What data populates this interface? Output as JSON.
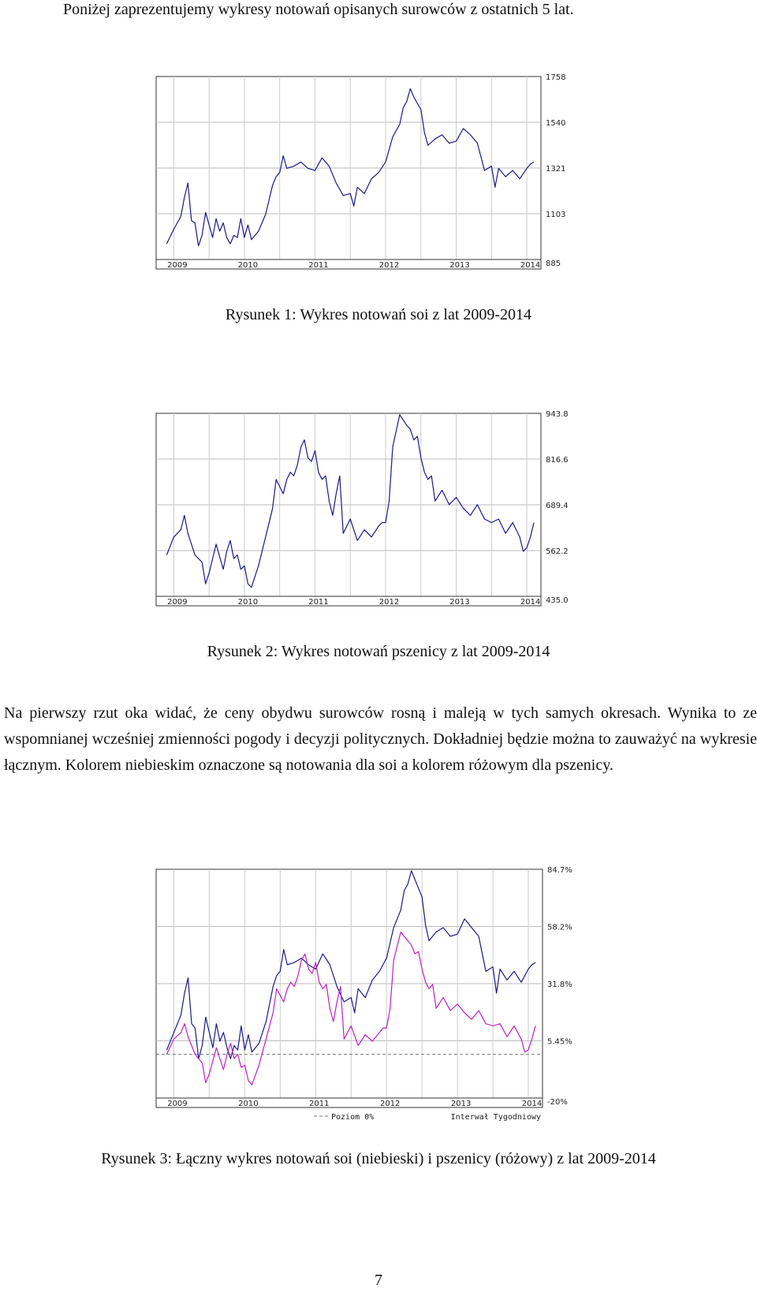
{
  "intro_text": "Poniżej zaprezentujemy wykresy notowań opisanych surowców z ostatnich 5 lat.",
  "paragraph": "Na pierwszy rzut oka widać, że ceny obydwu surowców rosną i maleją w tych samych okresach. Wynika to ze wspomnianej wcześniej zmienności pogody i decyzji politycznych. Dokładniej będzie można to zauważyć na wykresie łącznym. Kolorem niebieskim oznaczone są notowania dla soi a kolorem różowym dla pszenicy.",
  "page_number": "7",
  "colors": {
    "soy": "#1a1a8c",
    "wheat": "#c020c0",
    "grid": "#9a9a9a"
  },
  "chart_data": [
    {
      "type": "line",
      "caption": "Rysunek 1: Wykres notowań soi z lat 2009-2014",
      "x_labels": [
        "2009",
        "2010",
        "2011",
        "2012",
        "2013",
        "2014"
      ],
      "y_ticks": [
        "1758",
        "1540",
        "1321",
        "1103",
        "885"
      ],
      "ylim": [
        885,
        1758
      ],
      "series": [
        {
          "x": [
            2008.9,
            2009.0,
            2009.1,
            2009.15,
            2009.2,
            2009.25,
            2009.3,
            2009.35,
            2009.4,
            2009.45,
            2009.5,
            2009.55,
            2009.6,
            2009.65,
            2009.7,
            2009.75,
            2009.8,
            2009.85,
            2009.9,
            2009.95,
            2010.0,
            2010.05,
            2010.1,
            2010.2,
            2010.3,
            2010.4,
            2010.45,
            2010.5,
            2010.55,
            2010.6,
            2010.7,
            2010.8,
            2010.9,
            2011.0,
            2011.1,
            2011.2,
            2011.3,
            2011.4,
            2011.5,
            2011.55,
            2011.6,
            2011.7,
            2011.8,
            2011.9,
            2012.0,
            2012.1,
            2012.2,
            2012.25,
            2012.3,
            2012.35,
            2012.4,
            2012.5,
            2012.55,
            2012.6,
            2012.7,
            2012.8,
            2012.9,
            2013.0,
            2013.1,
            2013.2,
            2013.3,
            2013.4,
            2013.5,
            2013.55,
            2013.6,
            2013.7,
            2013.8,
            2013.9,
            2014.0,
            2014.05,
            2014.1
          ],
          "y": [
            960,
            1030,
            1090,
            1180,
            1250,
            1070,
            1060,
            950,
            1000,
            1110,
            1050,
            990,
            1080,
            1020,
            1060,
            990,
            960,
            1000,
            990,
            1080,
            990,
            1050,
            980,
            1020,
            1100,
            1240,
            1280,
            1300,
            1380,
            1320,
            1330,
            1350,
            1320,
            1310,
            1370,
            1330,
            1250,
            1190,
            1200,
            1140,
            1230,
            1200,
            1270,
            1300,
            1350,
            1470,
            1530,
            1610,
            1640,
            1700,
            1660,
            1600,
            1490,
            1430,
            1460,
            1480,
            1440,
            1450,
            1510,
            1480,
            1440,
            1310,
            1330,
            1230,
            1320,
            1280,
            1310,
            1270,
            1320,
            1340,
            1350
          ]
        }
      ]
    },
    {
      "type": "line",
      "caption": "Rysunek 2: Wykres notowań pszenicy z lat 2009-2014",
      "x_labels": [
        "2009",
        "2010",
        "2011",
        "2012",
        "2013",
        "2014"
      ],
      "y_ticks": [
        "943.8",
        "816.6",
        "689.4",
        "562.2",
        "435.0"
      ],
      "ylim": [
        435,
        943.8
      ],
      "series": [
        {
          "x": [
            2008.9,
            2009.0,
            2009.1,
            2009.15,
            2009.2,
            2009.3,
            2009.4,
            2009.45,
            2009.5,
            2009.6,
            2009.7,
            2009.75,
            2009.8,
            2009.85,
            2009.9,
            2009.95,
            2010.0,
            2010.05,
            2010.1,
            2010.2,
            2010.3,
            2010.4,
            2010.45,
            2010.5,
            2010.55,
            2010.6,
            2010.65,
            2010.7,
            2010.75,
            2010.8,
            2010.85,
            2010.9,
            2010.95,
            2011.0,
            2011.05,
            2011.1,
            2011.15,
            2011.2,
            2011.25,
            2011.3,
            2011.35,
            2011.4,
            2011.5,
            2011.6,
            2011.7,
            2011.8,
            2011.9,
            2011.95,
            2012.0,
            2012.05,
            2012.1,
            2012.2,
            2012.3,
            2012.35,
            2012.4,
            2012.45,
            2012.5,
            2012.55,
            2012.6,
            2012.65,
            2012.7,
            2012.8,
            2012.9,
            2013.0,
            2013.1,
            2013.2,
            2013.3,
            2013.4,
            2013.5,
            2013.6,
            2013.7,
            2013.8,
            2013.9,
            2013.95,
            2014.0,
            2014.05,
            2014.1
          ],
          "y": [
            550,
            600,
            620,
            660,
            610,
            550,
            530,
            470,
            500,
            580,
            510,
            560,
            590,
            540,
            550,
            510,
            520,
            470,
            460,
            520,
            600,
            680,
            760,
            740,
            720,
            760,
            780,
            770,
            800,
            850,
            870,
            820,
            810,
            840,
            780,
            760,
            770,
            700,
            660,
            720,
            770,
            610,
            650,
            590,
            620,
            600,
            630,
            640,
            640,
            700,
            850,
            940,
            910,
            900,
            870,
            880,
            820,
            780,
            760,
            770,
            700,
            730,
            690,
            710,
            680,
            660,
            690,
            650,
            640,
            650,
            610,
            640,
            600,
            560,
            570,
            600,
            640
          ]
        }
      ]
    },
    {
      "type": "line",
      "caption": "Rysunek 3: Łączny wykres notowań soi (niebieski) i pszenicy (różowy) z lat 2009-2014",
      "x_labels": [
        "2009",
        "2010",
        "2011",
        "2012",
        "2013",
        "2014"
      ],
      "y_ticks": [
        "84.7%",
        "58.2%",
        "31.8%",
        "5.45%",
        "-20%"
      ],
      "ylim": [
        -20,
        84.7
      ],
      "legend_left": "Poziom 0%",
      "legend_right": "Interwał Tygodniowy",
      "series": [
        {
          "color_key": "soy",
          "x": [
            2008.9,
            2009.0,
            2009.1,
            2009.15,
            2009.2,
            2009.25,
            2009.3,
            2009.35,
            2009.4,
            2009.45,
            2009.5,
            2009.55,
            2009.6,
            2009.65,
            2009.7,
            2009.75,
            2009.8,
            2009.85,
            2009.9,
            2009.95,
            2010.0,
            2010.05,
            2010.1,
            2010.2,
            2010.3,
            2010.4,
            2010.45,
            2010.5,
            2010.55,
            2010.6,
            2010.7,
            2010.8,
            2010.9,
            2011.0,
            2011.1,
            2011.2,
            2011.3,
            2011.4,
            2011.5,
            2011.55,
            2011.6,
            2011.7,
            2011.8,
            2011.9,
            2012.0,
            2012.1,
            2012.2,
            2012.25,
            2012.3,
            2012.35,
            2012.4,
            2012.5,
            2012.55,
            2012.6,
            2012.7,
            2012.8,
            2012.9,
            2013.0,
            2013.1,
            2013.2,
            2013.3,
            2013.4,
            2013.5,
            2013.55,
            2013.6,
            2013.7,
            2013.8,
            2013.9,
            2014.0,
            2014.05,
            2014.1
          ],
          "y": [
            2,
            10,
            18,
            28,
            35,
            14,
            12,
            -2,
            4,
            17,
            10,
            3,
            14,
            6,
            10,
            3,
            -2,
            4,
            2,
            13,
            2,
            9,
            1,
            5,
            15,
            31,
            36,
            38,
            48,
            41,
            42,
            44,
            41,
            39,
            46,
            41,
            31,
            24,
            26,
            19,
            30,
            26,
            34,
            38,
            44,
            58,
            66,
            75,
            78,
            84,
            80,
            72,
            59,
            52,
            56,
            58,
            54,
            55,
            62,
            58,
            54,
            38,
            40,
            28,
            39,
            34,
            38,
            33,
            39,
            41,
            42
          ]
        },
        {
          "color_key": "wheat",
          "x": [
            2008.9,
            2009.0,
            2009.1,
            2009.15,
            2009.2,
            2009.3,
            2009.4,
            2009.45,
            2009.5,
            2009.6,
            2009.7,
            2009.75,
            2009.8,
            2009.85,
            2009.9,
            2009.95,
            2010.0,
            2010.05,
            2010.1,
            2010.2,
            2010.3,
            2010.4,
            2010.45,
            2010.5,
            2010.55,
            2010.6,
            2010.65,
            2010.7,
            2010.75,
            2010.8,
            2010.85,
            2010.9,
            2010.95,
            2011.0,
            2011.05,
            2011.1,
            2011.15,
            2011.2,
            2011.25,
            2011.3,
            2011.35,
            2011.4,
            2011.5,
            2011.6,
            2011.7,
            2011.8,
            2011.9,
            2011.95,
            2012.0,
            2012.05,
            2012.1,
            2012.2,
            2012.3,
            2012.35,
            2012.4,
            2012.45,
            2012.5,
            2012.55,
            2012.6,
            2012.65,
            2012.7,
            2012.8,
            2012.9,
            2013.0,
            2013.1,
            2013.2,
            2013.3,
            2013.4,
            2013.5,
            2013.6,
            2013.7,
            2013.8,
            2013.9,
            2013.95,
            2014.0,
            2014.05,
            2014.1
          ],
          "y": [
            0,
            7,
            10,
            14,
            8,
            0,
            -4,
            -13,
            -9,
            3,
            -7,
            0,
            5,
            -2,
            0,
            -6,
            -5,
            -12,
            -14,
            -5,
            7,
            19,
            30,
            27,
            24,
            30,
            33,
            31,
            36,
            43,
            46,
            39,
            37,
            42,
            33,
            30,
            32,
            21,
            15,
            24,
            31,
            7,
            13,
            4,
            9,
            6,
            10,
            12,
            12,
            21,
            43,
            56,
            52,
            50,
            46,
            47,
            39,
            33,
            30,
            32,
            21,
            26,
            20,
            23,
            19,
            16,
            20,
            14,
            13,
            14,
            8,
            13,
            7,
            1,
            2,
            7,
            13
          ]
        }
      ]
    }
  ]
}
